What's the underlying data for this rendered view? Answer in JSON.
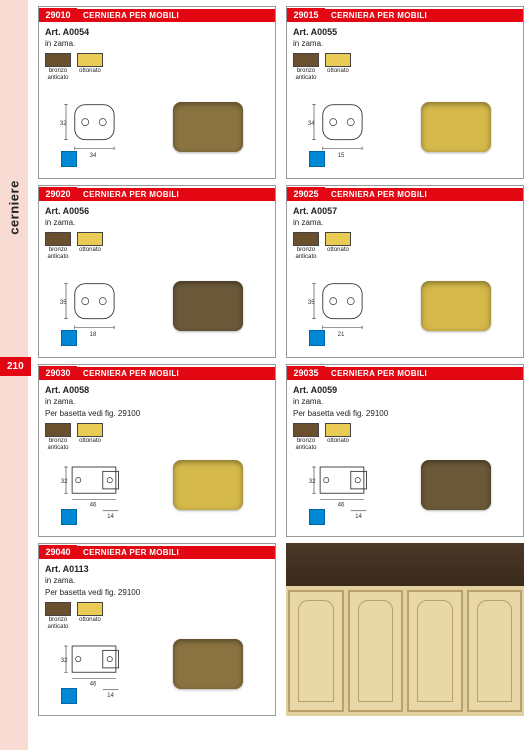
{
  "sidebar": {
    "label": "cerniere",
    "page_number": "210"
  },
  "swatches": {
    "bronzo": {
      "label": "bronzo\nanticato",
      "color": "#6b5030"
    },
    "ottonato": {
      "label": "ottonato",
      "color": "#e8cc55"
    }
  },
  "colors": {
    "accent": "#e30613",
    "sidebar_bg": "#f8dcd4",
    "bronze_product": "#8a7340",
    "brass_product": "#d4b84a",
    "blue_marker": "#0088d4"
  },
  "cards": [
    {
      "code": "29010",
      "title": "CERNIERA PER MOBILI",
      "art": "Art. A0054",
      "desc": "in zama.",
      "note": "",
      "dims": {
        "h": "32",
        "w": "34"
      },
      "product_color": "#8a7340"
    },
    {
      "code": "29015",
      "title": "CERNIERA PER MOBILI",
      "art": "Art. A0055",
      "desc": "in zama.",
      "note": "",
      "dims": {
        "h": "34",
        "w": "15"
      },
      "product_color": "#d4b84a"
    },
    {
      "code": "29020",
      "title": "CERNIERA PER MOBILI",
      "art": "Art. A0056",
      "desc": "in zama.",
      "note": "",
      "dims": {
        "h": "35",
        "w": "18"
      },
      "product_color": "#6b5838"
    },
    {
      "code": "29025",
      "title": "CERNIERA PER MOBILI",
      "art": "Art. A0057",
      "desc": "in zama.",
      "note": "",
      "dims": {
        "h": "35",
        "w": "21"
      },
      "product_color": "#d4b84a"
    },
    {
      "code": "29030",
      "title": "CERNIERA PER MOBILI",
      "art": "Art. A0058",
      "desc": "in zama.",
      "note": "Per basetta vedi fig. 29100",
      "dims": {
        "h": "32",
        "w1": "46",
        "w2": "14"
      },
      "product_color": "#d4b84a"
    },
    {
      "code": "29035",
      "title": "CERNIERA PER MOBILI",
      "art": "Art. A0059",
      "desc": "in zama.",
      "note": "Per basetta vedi fig. 29100",
      "dims": {
        "h": "32",
        "w1": "46",
        "w2": "14"
      },
      "product_color": "#6b5838"
    },
    {
      "code": "29040",
      "title": "CERNIERA PER MOBILI",
      "art": "Art. A0113",
      "desc": "in zama.",
      "note": "Per basetta vedi fig. 29100",
      "dims": {
        "h": "32",
        "w1": "46",
        "w2": "14"
      },
      "product_color": "#8a7340"
    }
  ]
}
